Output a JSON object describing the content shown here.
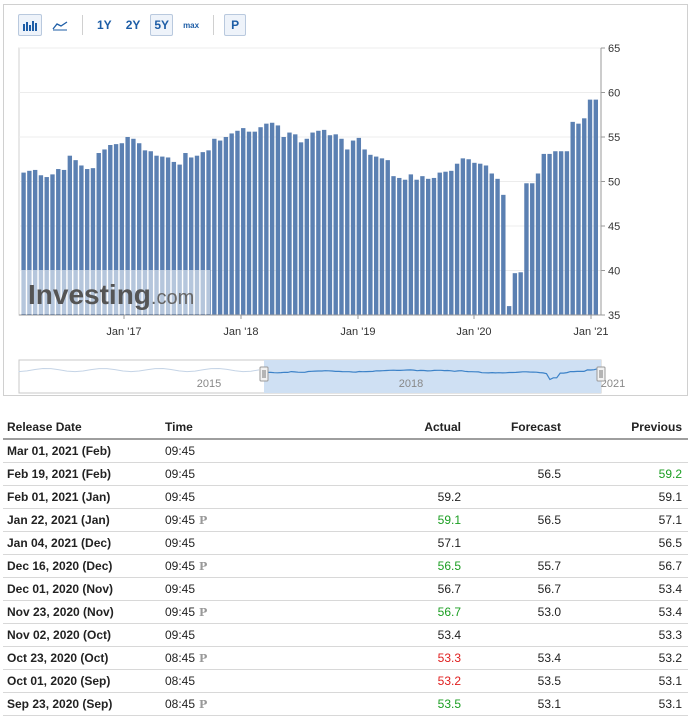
{
  "toolbar": {
    "icons": [
      "bar-chart-icon",
      "area-chart-icon"
    ],
    "ranges": [
      "1Y",
      "2Y",
      "5Y",
      "max"
    ],
    "active_range": "5Y",
    "p_label": "P"
  },
  "watermark": {
    "brand": "Investing",
    "suffix": ".com"
  },
  "navigator": {
    "year_labels": [
      "2015",
      "2018",
      "2021"
    ]
  },
  "colors": {
    "bar": "#5b80b2",
    "navigator_fill": "#cfe0f3",
    "navigator_line": "#3c82c8",
    "green": "#1b9e22",
    "red": "#e01e1e"
  },
  "chart_data": {
    "type": "bar",
    "title": "",
    "xlabel": "",
    "ylabel": "",
    "ylim": [
      35,
      65
    ],
    "yticks": [
      35,
      40,
      45,
      50,
      55,
      60,
      65
    ],
    "y_axis_position": "right",
    "grid": "horizontal",
    "xtick_labels": [
      "Jan '17",
      "Jan '18",
      "Jan '19",
      "Jan '20",
      "Jan '21"
    ],
    "values": [
      51.0,
      51.2,
      51.3,
      50.7,
      50.5,
      50.8,
      51.4,
      51.3,
      52.9,
      52.4,
      51.8,
      51.4,
      51.5,
      53.2,
      53.6,
      54.1,
      54.2,
      54.3,
      55.0,
      54.8,
      54.3,
      53.5,
      53.4,
      52.9,
      52.8,
      52.7,
      52.2,
      51.9,
      53.2,
      52.7,
      52.9,
      53.3,
      53.5,
      54.8,
      54.6,
      55.0,
      55.4,
      55.7,
      56.0,
      55.6,
      55.6,
      56.1,
      56.5,
      56.6,
      56.3,
      55.0,
      55.5,
      55.3,
      54.4,
      54.8,
      55.5,
      55.7,
      55.8,
      55.2,
      55.3,
      54.8,
      53.6,
      54.6,
      54.9,
      53.6,
      53.0,
      52.8,
      52.6,
      52.4,
      50.6,
      50.4,
      50.2,
      50.8,
      50.2,
      50.6,
      50.3,
      50.4,
      51.0,
      51.1,
      51.2,
      52.0,
      52.6,
      52.5,
      52.1,
      52.0,
      51.8,
      50.9,
      50.3,
      48.5,
      36.0,
      39.7,
      39.8,
      49.8,
      49.8,
      50.9,
      53.1,
      53.1,
      53.4,
      53.4,
      53.4,
      56.7,
      56.5,
      57.1,
      59.2,
      59.2
    ]
  },
  "table": {
    "headers": {
      "date": "Release Date",
      "time": "Time",
      "actual": "Actual",
      "forecast": "Forecast",
      "previous": "Previous"
    },
    "rows": [
      {
        "date": "Mar 01, 2021 (Feb)",
        "time": "09:45",
        "prelim": false,
        "actual": "",
        "actual_color": "",
        "forecast": "",
        "previous": "",
        "previous_color": ""
      },
      {
        "date": "Feb 19, 2021 (Feb)",
        "time": "09:45",
        "prelim": false,
        "actual": "",
        "actual_color": "",
        "forecast": "56.5",
        "previous": "59.2",
        "previous_color": "green"
      },
      {
        "date": "Feb 01, 2021 (Jan)",
        "time": "09:45",
        "prelim": false,
        "actual": "59.2",
        "actual_color": "",
        "forecast": "",
        "previous": "59.1",
        "previous_color": ""
      },
      {
        "date": "Jan 22, 2021 (Jan)",
        "time": "09:45",
        "prelim": true,
        "actual": "59.1",
        "actual_color": "green",
        "forecast": "56.5",
        "previous": "57.1",
        "previous_color": ""
      },
      {
        "date": "Jan 04, 2021 (Dec)",
        "time": "09:45",
        "prelim": false,
        "actual": "57.1",
        "actual_color": "",
        "forecast": "",
        "previous": "56.5",
        "previous_color": ""
      },
      {
        "date": "Dec 16, 2020 (Dec)",
        "time": "09:45",
        "prelim": true,
        "actual": "56.5",
        "actual_color": "green",
        "forecast": "55.7",
        "previous": "56.7",
        "previous_color": ""
      },
      {
        "date": "Dec 01, 2020 (Nov)",
        "time": "09:45",
        "prelim": false,
        "actual": "56.7",
        "actual_color": "",
        "forecast": "56.7",
        "previous": "53.4",
        "previous_color": ""
      },
      {
        "date": "Nov 23, 2020 (Nov)",
        "time": "09:45",
        "prelim": true,
        "actual": "56.7",
        "actual_color": "green",
        "forecast": "53.0",
        "previous": "53.4",
        "previous_color": ""
      },
      {
        "date": "Nov 02, 2020 (Oct)",
        "time": "09:45",
        "prelim": false,
        "actual": "53.4",
        "actual_color": "",
        "forecast": "",
        "previous": "53.3",
        "previous_color": ""
      },
      {
        "date": "Oct 23, 2020 (Oct)",
        "time": "08:45",
        "prelim": true,
        "actual": "53.3",
        "actual_color": "red",
        "forecast": "53.4",
        "previous": "53.2",
        "previous_color": ""
      },
      {
        "date": "Oct 01, 2020 (Sep)",
        "time": "08:45",
        "prelim": false,
        "actual": "53.2",
        "actual_color": "red",
        "forecast": "53.5",
        "previous": "53.1",
        "previous_color": ""
      },
      {
        "date": "Sep 23, 2020 (Sep)",
        "time": "08:45",
        "prelim": true,
        "actual": "53.5",
        "actual_color": "green",
        "forecast": "53.1",
        "previous": "53.1",
        "previous_color": ""
      }
    ]
  }
}
